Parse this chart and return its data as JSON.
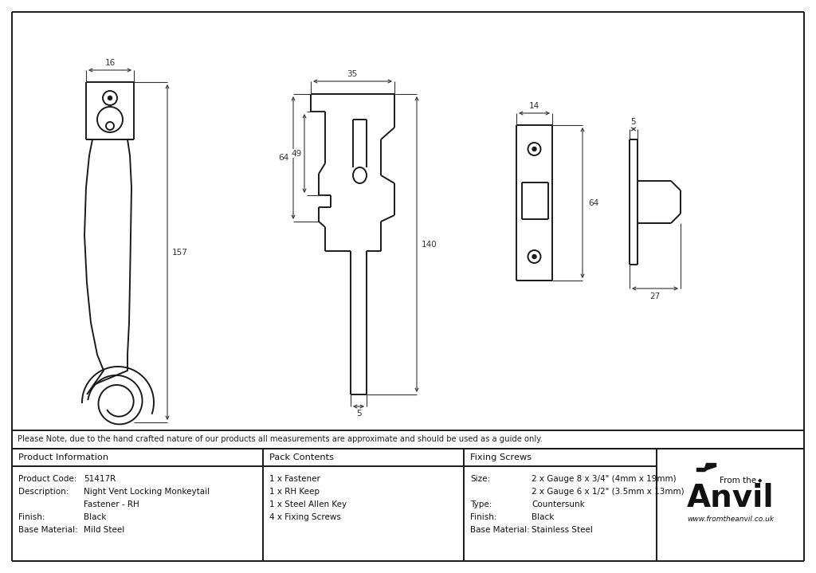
{
  "bg_color": "#FFFFFF",
  "line_color": "#1a1a1a",
  "dim_color": "#333333",
  "note_text": "Please Note, due to the hand crafted nature of our products all measurements are approximate and should be used as a guide only.",
  "product_info": {
    "col1_header": "Product Information",
    "col2_header": "Pack Contents",
    "col3_header": "Fixing Screws",
    "rows_col1": [
      [
        "Product Code:",
        "51417R"
      ],
      [
        "Description:",
        "Night Vent Locking Monkeytail"
      ],
      [
        "",
        "Fastener - RH"
      ],
      [
        "Finish:",
        "Black"
      ],
      [
        "Base Material:",
        "Mild Steel"
      ]
    ],
    "rows_col2": [
      "1 x Fastener",
      "1 x RH Keep",
      "1 x Steel Allen Key",
      "4 x Fixing Screws"
    ],
    "rows_col3": [
      [
        "Size:",
        "2 x Gauge 8 x 3/4\" (4mm x 19mm)"
      ],
      [
        "",
        "2 x Gauge 6 x 1/2\" (3.5mm x 13mm)"
      ],
      [
        "Type:",
        "Countersunk"
      ],
      [
        "Finish:",
        "Black"
      ],
      [
        "Base Material:",
        "Stainless Steel"
      ]
    ]
  },
  "anvil_text1": "From the",
  "anvil_text2": "Anvil",
  "anvil_url": "www.fromtheanvil.co.uk",
  "dims": {
    "d16": "16",
    "d35": "35",
    "d157": "157",
    "d64_left": "64",
    "d49": "49",
    "d5_mid": "5",
    "d140": "140",
    "d14": "14",
    "d5_right": "5",
    "d64_right": "64",
    "d27": "27"
  }
}
